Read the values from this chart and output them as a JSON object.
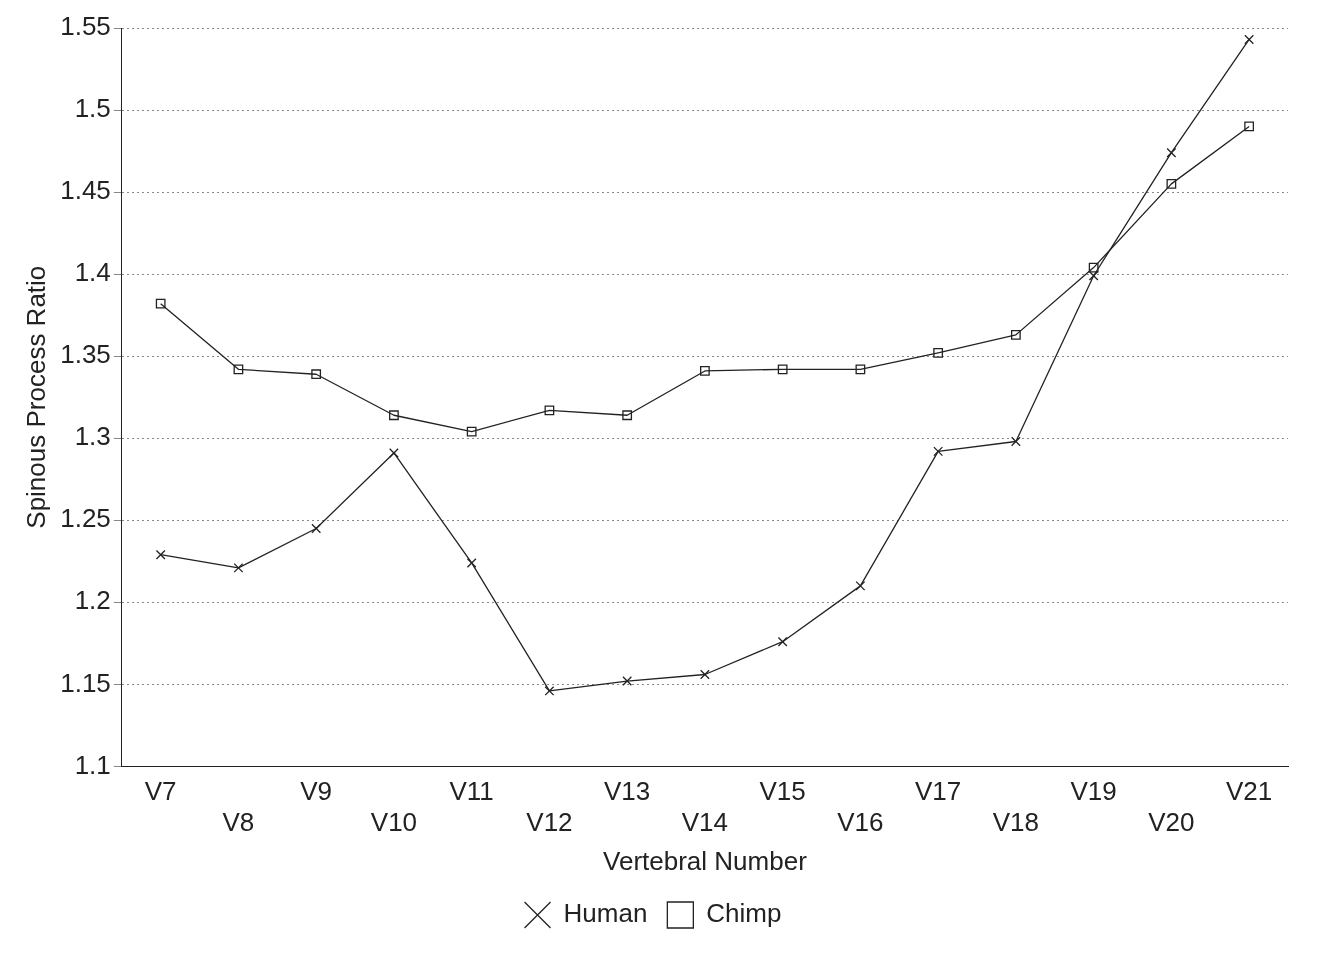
{
  "chart_data": {
    "type": "line",
    "xlabel": "Vertebral Number",
    "ylabel": "Spinous Process Ratio",
    "categories": [
      "V7",
      "V8",
      "V9",
      "V10",
      "V11",
      "V12",
      "V13",
      "V14",
      "V15",
      "V16",
      "V17",
      "V18",
      "V19",
      "V20",
      "V21"
    ],
    "series": [
      {
        "name": "Human",
        "color": "#222222",
        "marker": "cross",
        "values": [
          1.229,
          1.221,
          1.245,
          1.291,
          1.224,
          1.146,
          1.152,
          1.156,
          1.176,
          1.21,
          1.292,
          1.298,
          1.399,
          1.474,
          1.543
        ]
      },
      {
        "name": "Chimp",
        "color": "#222222",
        "marker": "square",
        "values": [
          1.382,
          1.342,
          1.339,
          1.314,
          1.304,
          1.317,
          1.314,
          1.341,
          1.342,
          1.342,
          1.352,
          1.363,
          1.404,
          1.455,
          1.49
        ]
      }
    ],
    "ylim": [
      1.1,
      1.55
    ],
    "yticks": [
      1.1,
      1.15,
      1.2,
      1.25,
      1.3,
      1.35,
      1.4,
      1.45,
      1.5,
      1.55
    ],
    "grid": "y",
    "legend": "bottom",
    "line_style": "solid"
  }
}
